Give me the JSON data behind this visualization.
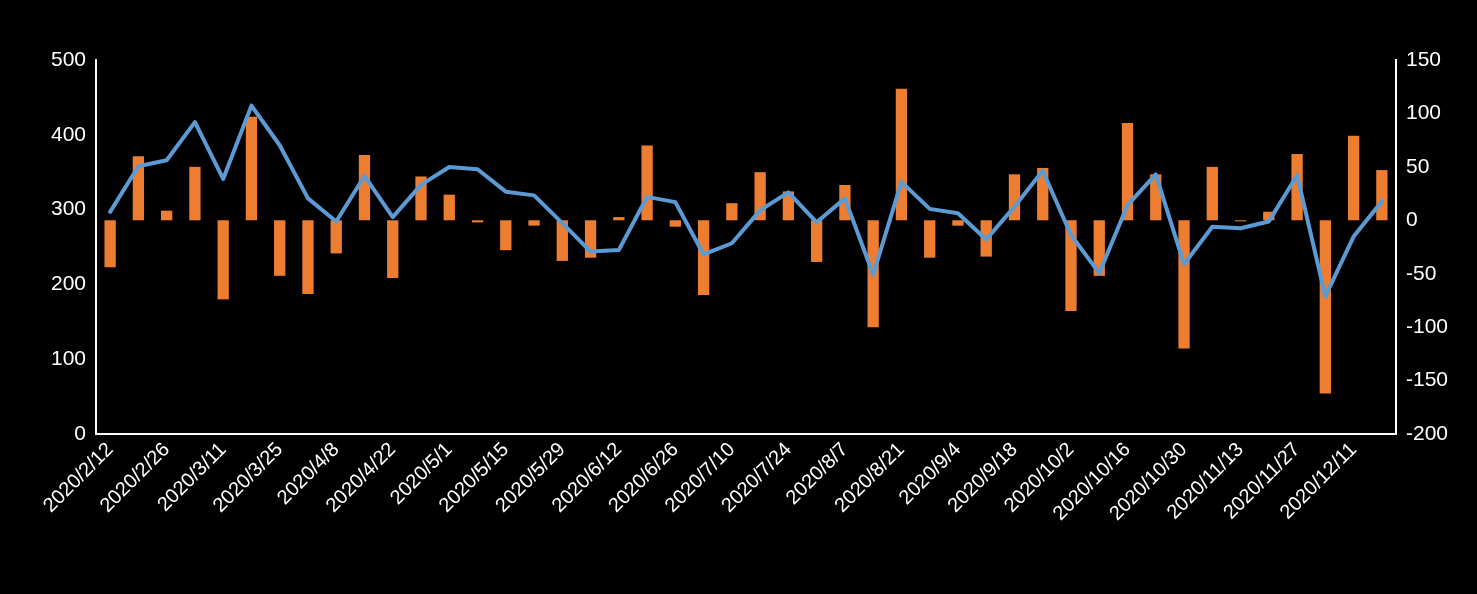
{
  "chart_data": {
    "type": "bar",
    "categories": [
      "2020/2/12",
      null,
      "2020/2/26",
      null,
      "2020/3/11",
      null,
      "2020/3/25",
      null,
      "2020/4/8",
      null,
      "2020/4/22",
      null,
      "2020/5/1",
      null,
      "2020/5/15",
      null,
      "2020/5/29",
      null,
      "2020/6/12",
      null,
      "2020/6/26",
      null,
      "2020/7/10",
      null,
      "2020/7/24",
      null,
      "2020/8/7",
      null,
      "2020/8/21",
      null,
      "2020/9/4",
      null,
      "2020/9/18",
      null,
      "2020/10/2",
      null,
      "2020/10/16",
      null,
      "2020/10/30",
      null,
      "2020/11/13",
      null,
      "2020/11/27",
      null,
      "2020/12/11",
      null
    ],
    "series": [
      {
        "axis": "y2",
        "color": "#ed7d31",
        "values": [
          -44,
          60,
          9,
          50,
          -74,
          97,
          -52,
          -69,
          -31,
          61,
          -54,
          41,
          24,
          -2,
          -28,
          -5,
          -38,
          -35,
          3,
          70,
          -6,
          -70,
          16,
          45,
          27,
          -39,
          33,
          -100,
          123,
          -35,
          -5,
          -34,
          43,
          49,
          -85,
          -52,
          91,
          43,
          -120,
          50,
          -1,
          8,
          62,
          -162,
          79,
          47
        ]
      },
      {
        "type": "line",
        "color": "#5b9bd5",
        "values": [
          297,
          358,
          366,
          417,
          341,
          439,
          386,
          315,
          284,
          345,
          290,
          333,
          357,
          354,
          324,
          319,
          282,
          244,
          246,
          317,
          310,
          240,
          255,
          299,
          323,
          283,
          315,
          213,
          337,
          301,
          295,
          260,
          304,
          352,
          266,
          215,
          306,
          347,
          227,
          277,
          275,
          284,
          346,
          184,
          264,
          311
        ]
      }
    ],
    "ylim": [
      0,
      500
    ],
    "yticks": [
      0,
      100,
      200,
      300,
      400,
      500
    ],
    "y2lim": [
      -200,
      150
    ],
    "y2ticks": [
      -200,
      -150,
      -100,
      -50,
      0,
      50,
      100,
      150
    ],
    "grid": false,
    "legend": false,
    "marker": "none",
    "line_style": "solid"
  }
}
